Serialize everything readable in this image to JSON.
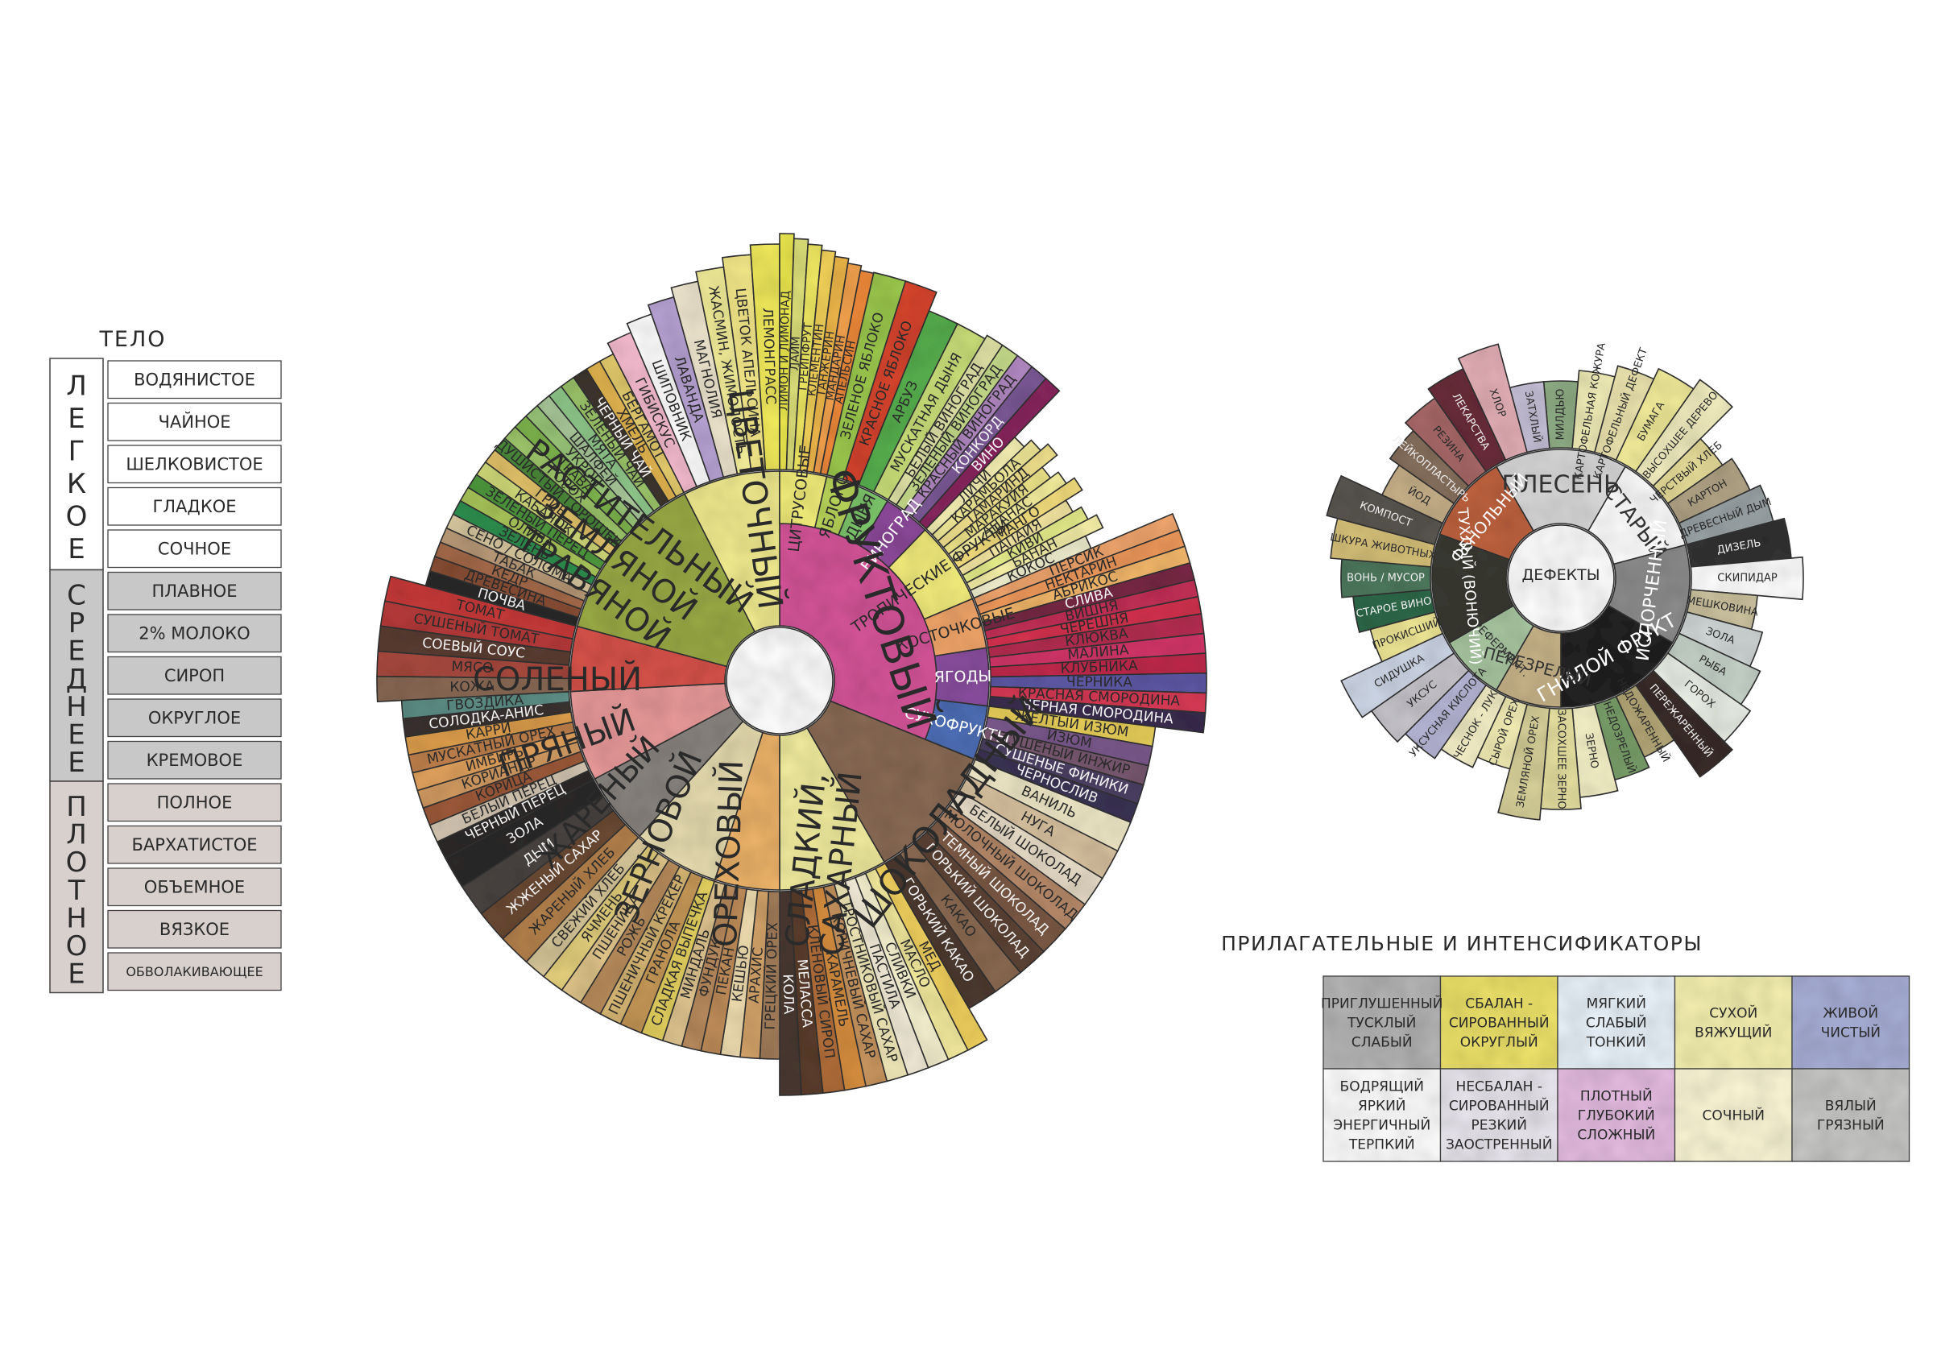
{
  "body": {
    "title": "ТЕЛО",
    "groups": [
      {
        "label": "ЛЕГКОЕ",
        "color": "#ffffff",
        "items": [
          "ВОДЯНИСТОЕ",
          "ЧАЙНОЕ",
          "ШЕЛКОВИСТОЕ",
          "ГЛАДКОЕ",
          "СОЧНОЕ"
        ]
      },
      {
        "label": "СРЕДНЕЕ",
        "color": "#c8c8c8",
        "items": [
          "ПЛАВНОЕ",
          "2% МОЛОКО",
          "СИРОП",
          "ОКРУГЛОЕ",
          "КРЕМОВОЕ"
        ]
      },
      {
        "label": "ПЛОТНОЕ",
        "color": "#d8d0cd",
        "items": [
          "ПОЛНОЕ",
          "БАРХАТИСТОЕ",
          "ОБЪЕМНОЕ",
          "ВЯЗКОЕ",
          "ОБВОЛАКИВАЮЩЕЕ"
        ]
      }
    ]
  },
  "wheel": {
    "inner_colors": {
      "flower": "#f2ec90",
      "fruit": "#d6559a",
      "salty": "#d8534a",
      "spicy": "#e99a9a",
      "roast": "#8a8580",
      "grain": "#e7dcb0",
      "nut": "#eeb46a",
      "sweet": "#f1ec9e",
      "choc": "#8a6b55",
      "veg": "#9aab46"
    },
    "groups": [
      {
        "key": "fruit",
        "label": "ФРУКТОВЫЙ",
        "color": "#d6559a"
      },
      {
        "key": "choc",
        "label": "ШОКОЛАДНЫЙ",
        "color": "#8a6b55"
      },
      {
        "key": "sweet",
        "label": "СЛАДКИЙ, САХАРНЫЙ",
        "color": "#f1ec9e"
      },
      {
        "key": "nut",
        "label": "ОРЕХОВЫЙ",
        "color": "#eeb46a"
      },
      {
        "key": "grain",
        "label": "ЗЕРНОВОЙ",
        "color": "#e7dcb0"
      },
      {
        "key": "roast",
        "label": "ЖАРЕНЫЙ",
        "color": "#8a8580"
      },
      {
        "key": "spicy",
        "label": "ПРЯНЫЙ",
        "color": "#e99a9a"
      },
      {
        "key": "salty",
        "label": "СОЛЕНЫЙ",
        "color": "#d8534a"
      },
      {
        "key": "veg",
        "label": "РАСТИТЕЛЬНЫЙ ЗЕМЛЯНОЙ ТРАВЯНОЙ",
        "color": "#9aab46"
      },
      {
        "key": "flower",
        "label": "ЦВЕТОЧНЫЙ",
        "color": "#f2ec90"
      }
    ],
    "subgroups": [
      {
        "label": "ЦИТРУСОВЫЕ",
        "color": "#f3ee7a"
      },
      {
        "label": "ЯБЛОКО",
        "color": "#b9d55a"
      },
      {
        "label": "ДЫНЯ",
        "color": "#7fc86d"
      },
      {
        "label": "ВИНОГРАД",
        "color": "#8e4a9b"
      },
      {
        "label": "ТРОПИЧЕСКИЕ ФРУКТЫ",
        "color": "#f3ec7c"
      },
      {
        "label": "КОСТОЧКОВЫЕ",
        "color": "#f2a66a"
      },
      {
        "label": "ЯГОДЫ",
        "color": "#8b4fa0"
      },
      {
        "label": "СУХОФРУКТЫ",
        "color": "#4e6fb8"
      }
    ],
    "outer": {
      "flower": [
        "ГИБИСКУС",
        "ШИПОВНИК",
        "ЛАВАНДА",
        "МАГНОЛИЯ",
        "ЖАСМИН, ЖИМОЛОСТЬ",
        "ЦВЕТОК АПЕЛЬСИНА",
        "ЛЕМОНГРАСС"
      ],
      "citrus": [
        "ЛИМОН И ЛИМОНАД",
        "ЛАЙМ",
        "ГРЕЙПФРУТ",
        "КЛЕМЕНТИН",
        "ТАНЖЕРИН",
        "МАНДАРИН",
        "АПЕЛЬСИН"
      ],
      "apple": [
        "ЗЕЛЕНОЕ ЯБЛОКО",
        "КРАСНОЕ ЯБЛОКО"
      ],
      "melon": [
        "АРБУЗ",
        "МУСКАТНАЯ ДЫНЯ"
      ],
      "grape": [
        "БЕЛЫЙ ВИНОГРАД",
        "ЗЕЛЕНЫЙ ВИНОГРАД",
        "КРАСНЫЙ ВИНОГРАД",
        "КОНКОРД",
        "ВИНО"
      ],
      "tropic": [
        "ЛИЧИ",
        "КАРАМБОЛА",
        "ТАМАРИНД",
        "МАРАКУЙЯ",
        "АНАНАС",
        "МАНГО",
        "ПАПАЙЯ",
        "КИВИ",
        "БАНАН",
        "КОКОС"
      ],
      "stone": [
        "ПЕРСИК",
        "НЕКТАРИН",
        "АБРИКОС",
        "СЛИВА",
        "ВИШНЯ",
        "ЧЕРЕШНЯ"
      ],
      "berry": [
        "КЛЮКВА",
        "МАЛИНА",
        "КЛУБНИКА",
        "ЧЕРНИКА",
        "КРАСНАЯ СМОРОДИНА",
        "ЧЕРНАЯ СМОРОДИНА"
      ],
      "dried": [
        "ЖЕЛТЫЙ ИЗЮМ",
        "ИЗЮМ",
        "СУШЕНЫЙ ИНЖИР",
        "СУШЕНЫЕ ФИНИКИ",
        "ЧЕРНОСЛИВ"
      ],
      "choc": [
        "ВАНИЛЬ",
        "НУГА",
        "БЕЛЫЙ ШОКОЛАД",
        "МОЛОЧНЫЙ ШОКОЛАД",
        "ТЕМНЫЙ ШОКОЛАД",
        "ГОРЬКИЙ ШОКОЛАД",
        "КАКАО",
        "ГОРЬКИЙ КАКАО"
      ],
      "sweet": [
        "МЕД",
        "МАСЛО",
        "СЛИВКИ",
        "ПАСТИЛА",
        "ТРОСТНИКОВЫЙ САХАР",
        "КОРИЧНЕВЫЙ САХАР",
        "КАРАМЕЛЬ",
        "КЛЕНОВЫЙ СИРОП",
        "МЕЛАССА",
        "КОЛА"
      ],
      "nut": [
        "ГРЕЦКИЙ ОРЕХ",
        "АРАХИС",
        "КЕШЬЮ",
        "ПЕКАН",
        "ФУНДУК",
        "МИНДАЛЬ"
      ],
      "grain": [
        "СЛАДКАЯ ВЫПЕЧКА",
        "ГРАНОЛА",
        "ПШЕНИЧНЫЙ КРЕКЕР",
        "РОЖЬ",
        "ПШЕНИЦА",
        "ЯЧМЕНЬ",
        "СВЕЖИЙ ХЛЕБ"
      ],
      "roast": [
        "ЖАРЕНЫЙ ХЛЕБ",
        "ЖЖЕНЫЙ САХАР",
        "ДЫМ",
        "ЗОЛА"
      ],
      "spicy": [
        "ЧЕРНЫЙ ПЕРЕЦ",
        "БЕЛЫЙ ПЕРЕЦ",
        "КОРИЦА",
        "КОРИАНДР",
        "ИМБИРЬ",
        "МУСКАТНЫЙ ОРЕХ",
        "КАРРИ",
        "СОЛОДКА-АНИС",
        "ГВОЗДИКА"
      ],
      "salty": [
        "КОЖА",
        "МЯСО",
        "СОЕВЫЙ СОУС",
        "СУШЕНЫЙ ТОМАТ",
        "ТОМАТ"
      ],
      "veg": [
        "ПОЧВА",
        "ДРЕВЕСИНА",
        "КЕДР",
        "ТАБАК",
        "СЕНО / СОЛОМА",
        "ЗЕЛЕНЬ",
        "ОЛИВА",
        "ЗЕЛЕНЫЙ ПЕРЕЦ",
        "КАБАЧОК",
        "ГРИБ",
        "ДУШИСТЫЙ ГОРОШЕК",
        "ГОРОХ",
        "ТРАВА",
        "УКРОП",
        "ШАЛФЕЙ",
        "МЯТА",
        "ЗЕЛЕНЫЙ ЧАЙ",
        "ЧЕРНЫЙ ЧАЙ",
        "ХМЕЛЬ",
        "БЕРГАМОТ"
      ]
    }
  },
  "defects": {
    "center": "ДЕФЕКТЫ",
    "inner": [
      {
        "label": "ПЛЕСЕНЬ",
        "color": "#d9d9d9"
      },
      {
        "label": "СТАРЫЙ",
        "color": "#ffffff"
      },
      {
        "label": "ИСПОРЧЕННЫЙ",
        "color": "#8d8d8d"
      },
      {
        "label": "ГНИЛОЙ ФРУКТ",
        "color": "#222222"
      },
      {
        "label": "ПЕРЕЗРЕЛЫЙ",
        "color": "#c9b58a"
      },
      {
        "label": "ПЕРЕФЕРМЕНТ.",
        "color": "#a9c7a1"
      },
      {
        "label": "ТУХЛЫЙ (ВОНЮЧИЙ)",
        "color": "#3a3a33"
      },
      {
        "label": "ФЕНОЛЬНЫЙ",
        "color": "#c0633f"
      }
    ],
    "outer": [
      "МИЛДЬЮ",
      "КАРТОФЕЛЬНАЯ КОЖУРА",
      "КАРТОФЕЛЬНЫЙ ДЕФЕКТ",
      "БУМАГА",
      "ВЫСОХШЕЕ ДЕРЕВО",
      "ЧЕРСТВЫЙ ХЛЕБ",
      "КАРТОН",
      "ДРЕВЕСНЫЙ ДЫМ",
      "ДИЗЕЛЬ",
      "СКИПИДАР",
      "МЕШКОВИНА",
      "ЗОЛА",
      "РЫБА",
      "ГОРОХ",
      "ПЕРЕЖАРЕННЫЙ",
      "НЕДОЖАРЕННЫЙ",
      "НЕДОЗРЕЛЫЙ",
      "ЗЕРНО",
      "ЗАСОХШЕЕ ЗЕРНО",
      "ЗЕМЛЯНОЙ ОРЕХ",
      "СЫРОЙ ОРЕХ",
      "ЧЕСНОК - ЛУК",
      "УКСУСНАЯ КИСЛОТА",
      "УКСУС",
      "СИДУШКА",
      "ПРОКИСШИЙ",
      "СТАРОЕ ВИНО",
      "ВОНЬ / МУСОР",
      "ШКУРА ЖИВОТНЫХ",
      "КОМПОСТ",
      "ЙОД",
      "ЛЕЙКОПЛАСТЫРЬ",
      "РЕЗИНА",
      "ЛЕКАРСТВА",
      "ХЛОР",
      "ЗАТХЛЫЙ"
    ]
  },
  "intensifiers": {
    "title": "ПРИЛАГАТЕЛЬНЫЕ И ИНТЕНСИФИКАТОРЫ",
    "rows": [
      [
        {
          "lines": [
            "ПРИГЛУШЕННЫЙ",
            "ТУСКЛЫЙ",
            "СЛАБЫЙ"
          ],
          "color": "#b5b5b5"
        },
        {
          "lines": [
            "СБАЛАН -",
            "СИРОВАННЫЙ",
            "ОКРУГЛЫЙ"
          ],
          "color": "#eee36a"
        },
        {
          "lines": [
            "МЯГКИЙ",
            "СЛАБЫЙ",
            "ТОНКИЙ"
          ],
          "color": "#eaf3fb"
        },
        {
          "lines": [
            "СУХОЙ",
            "ВЯЖУЩИЙ"
          ],
          "color": "#f6f1b0"
        },
        {
          "lines": [
            "ЖИВОЙ",
            "ЧИСТЫЙ"
          ],
          "color": "#a9b0d8"
        }
      ],
      [
        {
          "lines": [
            "БОДРЯЩИЙ",
            "ЯРКИЙ",
            "ЭНЕРГИЧНЫЙ",
            "ТЕРПКИЙ"
          ],
          "color": "#ffffff"
        },
        {
          "lines": [
            "НЕСБАЛАН -",
            "СИРОВАННЫЙ",
            "РЕЗКИЙ",
            "ЗАОСТРЕННЫЙ"
          ],
          "color": "#eae7ef"
        },
        {
          "lines": [
            "ПЛОТНЫЙ",
            "ГЛУБОКИЙ",
            "СЛОЖНЫЙ"
          ],
          "color": "#e6bde3"
        },
        {
          "lines": [
            "СОЧНЫЙ"
          ],
          "color": "#fcf7d6"
        },
        {
          "lines": [
            "ВЯЛЫЙ",
            "ГРЯЗНЫЙ"
          ],
          "color": "#c8c8c6"
        }
      ]
    ]
  }
}
